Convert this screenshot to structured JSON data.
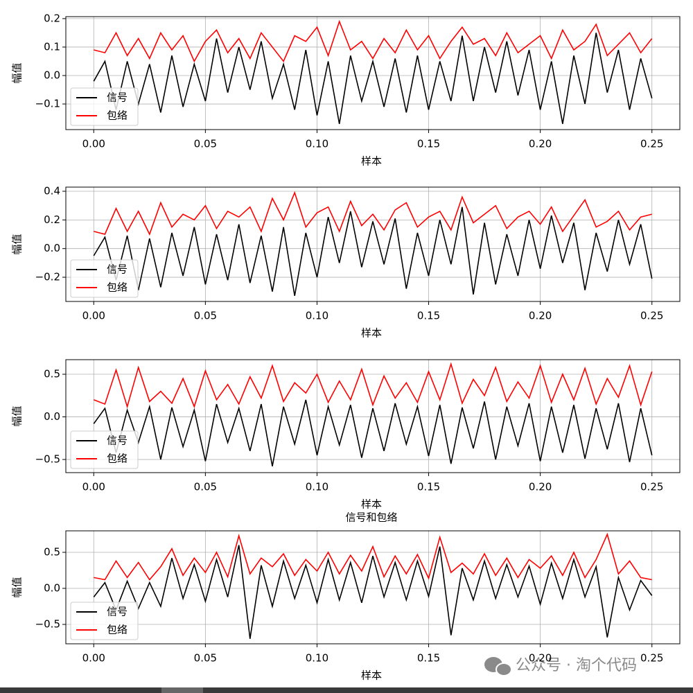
{
  "chart_data": [
    {
      "type": "line",
      "xlabel": "样本",
      "ylabel": "幅值",
      "x": [
        0,
        0.005,
        0.01,
        0.015,
        0.02,
        0.025,
        0.03,
        0.035,
        0.04,
        0.045,
        0.05,
        0.055,
        0.06,
        0.065,
        0.07,
        0.075,
        0.08,
        0.085,
        0.09,
        0.095,
        0.1,
        0.105,
        0.11,
        0.115,
        0.12,
        0.125,
        0.13,
        0.135,
        0.14,
        0.145,
        0.15,
        0.155,
        0.16,
        0.165,
        0.17,
        0.175,
        0.18,
        0.185,
        0.19,
        0.195,
        0.2,
        0.205,
        0.21,
        0.215,
        0.22,
        0.225,
        0.23,
        0.235,
        0.24,
        0.245,
        0.25
      ],
      "series": [
        {
          "name": "信号",
          "color": "#000000",
          "values": [
            -0.02,
            0.05,
            -0.12,
            0.05,
            -0.1,
            0.04,
            -0.13,
            0.07,
            -0.11,
            0.04,
            -0.09,
            0.13,
            -0.06,
            0.1,
            -0.05,
            0.12,
            -0.08,
            0.04,
            -0.12,
            0.09,
            -0.14,
            0.05,
            -0.17,
            0.07,
            -0.09,
            0.05,
            -0.11,
            0.06,
            -0.13,
            0.07,
            -0.12,
            0.05,
            -0.09,
            0.14,
            -0.09,
            0.1,
            -0.06,
            0.12,
            -0.07,
            0.09,
            -0.12,
            0.05,
            -0.17,
            0.07,
            -0.1,
            0.15,
            -0.06,
            0.09,
            -0.12,
            0.06,
            -0.08
          ]
        },
        {
          "name": "包络",
          "color": "#ff0000",
          "values": [
            0.09,
            0.08,
            0.15,
            0.07,
            0.13,
            0.06,
            0.15,
            0.09,
            0.14,
            0.05,
            0.12,
            0.16,
            0.08,
            0.13,
            0.06,
            0.15,
            0.1,
            0.05,
            0.14,
            0.12,
            0.17,
            0.07,
            0.19,
            0.09,
            0.12,
            0.06,
            0.13,
            0.08,
            0.16,
            0.09,
            0.14,
            0.06,
            0.12,
            0.17,
            0.11,
            0.13,
            0.07,
            0.15,
            0.08,
            0.11,
            0.14,
            0.06,
            0.16,
            0.09,
            0.12,
            0.18,
            0.07,
            0.11,
            0.15,
            0.08,
            0.13
          ]
        }
      ],
      "xlim": [
        -0.0125,
        0.2625
      ],
      "ylim": [
        -0.19,
        0.207
      ],
      "xticks": [
        {
          "value": 0,
          "label": "0.00"
        },
        {
          "value": 0.05,
          "label": "0.05"
        },
        {
          "value": 0.1,
          "label": "0.10"
        },
        {
          "value": 0.15,
          "label": "0.15"
        },
        {
          "value": 0.2,
          "label": "0.20"
        },
        {
          "value": 0.25,
          "label": "0.25"
        }
      ],
      "yticks": [
        {
          "value": -0.1,
          "label": "−0.1"
        },
        {
          "value": 0,
          "label": "0.0"
        },
        {
          "value": 0.1,
          "label": "0.1"
        },
        {
          "value": 0.2,
          "label": "0.2"
        }
      ],
      "grid": true,
      "legend": "lower left"
    },
    {
      "type": "line",
      "xlabel": "样本",
      "ylabel": "幅值",
      "x": [
        0,
        0.005,
        0.01,
        0.015,
        0.02,
        0.025,
        0.03,
        0.035,
        0.04,
        0.045,
        0.05,
        0.055,
        0.06,
        0.065,
        0.07,
        0.075,
        0.08,
        0.085,
        0.09,
        0.095,
        0.1,
        0.105,
        0.11,
        0.115,
        0.12,
        0.125,
        0.13,
        0.135,
        0.14,
        0.145,
        0.15,
        0.155,
        0.16,
        0.165,
        0.17,
        0.175,
        0.18,
        0.185,
        0.19,
        0.195,
        0.2,
        0.205,
        0.21,
        0.215,
        0.22,
        0.225,
        0.23,
        0.235,
        0.24,
        0.245,
        0.25
      ],
      "series": [
        {
          "name": "信号",
          "color": "#000000",
          "values": [
            -0.05,
            0.08,
            -0.22,
            0.09,
            -0.29,
            0.07,
            -0.27,
            0.11,
            -0.19,
            0.15,
            -0.25,
            0.1,
            -0.22,
            0.17,
            -0.24,
            0.09,
            -0.3,
            0.15,
            -0.33,
            0.11,
            -0.2,
            0.22,
            -0.1,
            0.26,
            -0.13,
            0.19,
            -0.11,
            0.21,
            -0.28,
            0.11,
            -0.19,
            0.2,
            -0.11,
            0.29,
            -0.32,
            0.18,
            -0.25,
            0.1,
            -0.19,
            0.2,
            -0.14,
            0.23,
            -0.1,
            0.18,
            -0.29,
            0.11,
            -0.16,
            0.2,
            -0.11,
            0.17,
            -0.21
          ]
        },
        {
          "name": "包络",
          "color": "#ff0000",
          "values": [
            0.12,
            0.1,
            0.28,
            0.12,
            0.26,
            0.1,
            0.32,
            0.15,
            0.24,
            0.2,
            0.3,
            0.14,
            0.26,
            0.22,
            0.29,
            0.12,
            0.35,
            0.2,
            0.39,
            0.15,
            0.25,
            0.29,
            0.12,
            0.33,
            0.16,
            0.24,
            0.13,
            0.27,
            0.32,
            0.15,
            0.22,
            0.26,
            0.13,
            0.36,
            0.18,
            0.24,
            0.3,
            0.14,
            0.22,
            0.26,
            0.17,
            0.29,
            0.12,
            0.23,
            0.34,
            0.15,
            0.19,
            0.26,
            0.13,
            0.22,
            0.24
          ]
        }
      ],
      "xlim": [
        -0.0125,
        0.2625
      ],
      "ylim": [
        -0.369,
        0.429
      ],
      "xticks": [
        {
          "value": 0,
          "label": "0.00"
        },
        {
          "value": 0.05,
          "label": "0.05"
        },
        {
          "value": 0.1,
          "label": "0.10"
        },
        {
          "value": 0.15,
          "label": "0.15"
        },
        {
          "value": 0.2,
          "label": "0.20"
        },
        {
          "value": 0.25,
          "label": "0.25"
        }
      ],
      "yticks": [
        {
          "value": -0.2,
          "label": "−0.2"
        },
        {
          "value": 0,
          "label": "0.0"
        },
        {
          "value": 0.2,
          "label": "0.2"
        },
        {
          "value": 0.4,
          "label": "0.4"
        }
      ],
      "grid": true,
      "legend": "lower left"
    },
    {
      "type": "line",
      "xlabel": "样本",
      "ylabel": "幅值",
      "x": [
        0,
        0.005,
        0.01,
        0.015,
        0.02,
        0.025,
        0.03,
        0.035,
        0.04,
        0.045,
        0.05,
        0.055,
        0.06,
        0.065,
        0.07,
        0.075,
        0.08,
        0.085,
        0.09,
        0.095,
        0.1,
        0.105,
        0.11,
        0.115,
        0.12,
        0.125,
        0.13,
        0.135,
        0.14,
        0.145,
        0.15,
        0.155,
        0.16,
        0.165,
        0.17,
        0.175,
        0.18,
        0.185,
        0.19,
        0.195,
        0.2,
        0.205,
        0.21,
        0.215,
        0.22,
        0.225,
        0.23,
        0.235,
        0.24,
        0.245,
        0.25
      ],
      "series": [
        {
          "name": "信号",
          "color": "#000000",
          "values": [
            -0.08,
            0.1,
            -0.42,
            0.08,
            -0.3,
            0.12,
            -0.5,
            0.11,
            -0.35,
            0.08,
            -0.52,
            0.15,
            -0.3,
            0.1,
            -0.4,
            0.15,
            -0.58,
            0.12,
            -0.32,
            0.2,
            -0.45,
            0.12,
            -0.33,
            0.14,
            -0.48,
            0.1,
            -0.4,
            0.16,
            -0.32,
            0.12,
            -0.46,
            0.14,
            -0.55,
            0.11,
            -0.37,
            0.18,
            -0.5,
            0.12,
            -0.34,
            0.16,
            -0.52,
            0.12,
            -0.42,
            0.14,
            -0.49,
            0.1,
            -0.38,
            0.16,
            -0.53,
            0.1,
            -0.45
          ]
        },
        {
          "name": "包络",
          "color": "#ff0000",
          "values": [
            0.2,
            0.15,
            0.55,
            0.12,
            0.58,
            0.18,
            0.3,
            0.16,
            0.45,
            0.12,
            0.54,
            0.2,
            0.38,
            0.15,
            0.47,
            0.22,
            0.6,
            0.18,
            0.4,
            0.28,
            0.5,
            0.17,
            0.42,
            0.2,
            0.56,
            0.14,
            0.48,
            0.22,
            0.4,
            0.17,
            0.53,
            0.2,
            0.62,
            0.16,
            0.44,
            0.25,
            0.58,
            0.18,
            0.41,
            0.22,
            0.6,
            0.17,
            0.5,
            0.2,
            0.57,
            0.15,
            0.45,
            0.23,
            0.6,
            0.14,
            0.53
          ]
        }
      ],
      "xlim": [
        -0.0125,
        0.2625
      ],
      "ylim": [
        -0.654,
        0.671
      ],
      "xticks": [
        {
          "value": 0,
          "label": "0.00"
        },
        {
          "value": 0.05,
          "label": "0.05"
        },
        {
          "value": 0.1,
          "label": "0.10"
        },
        {
          "value": 0.15,
          "label": "0.15"
        },
        {
          "value": 0.2,
          "label": "0.20"
        },
        {
          "value": 0.25,
          "label": "0.25"
        }
      ],
      "yticks": [
        {
          "value": -0.5,
          "label": "−0.5"
        },
        {
          "value": 0,
          "label": "0.0"
        },
        {
          "value": 0.5,
          "label": "0.5"
        }
      ],
      "grid": true,
      "legend": "lower left"
    },
    {
      "type": "line",
      "title": "信号和包络",
      "xlabel": "样本",
      "ylabel": "幅值",
      "x": [
        0,
        0.005,
        0.01,
        0.015,
        0.02,
        0.025,
        0.03,
        0.035,
        0.04,
        0.045,
        0.05,
        0.055,
        0.06,
        0.065,
        0.07,
        0.075,
        0.08,
        0.085,
        0.09,
        0.095,
        0.1,
        0.105,
        0.11,
        0.115,
        0.12,
        0.125,
        0.13,
        0.135,
        0.14,
        0.145,
        0.15,
        0.155,
        0.16,
        0.165,
        0.17,
        0.175,
        0.18,
        0.185,
        0.19,
        0.195,
        0.2,
        0.205,
        0.21,
        0.215,
        0.22,
        0.225,
        0.23,
        0.235,
        0.24,
        0.245,
        0.25
      ],
      "series": [
        {
          "name": "信号",
          "color": "#000000",
          "values": [
            -0.12,
            0.08,
            -0.3,
            0.1,
            -0.28,
            0.08,
            -0.25,
            0.42,
            -0.14,
            0.33,
            -0.18,
            0.4,
            -0.12,
            0.6,
            -0.7,
            0.32,
            -0.25,
            0.38,
            -0.14,
            0.32,
            -0.2,
            0.4,
            -0.16,
            0.36,
            -0.2,
            0.45,
            -0.12,
            0.36,
            -0.16,
            0.38,
            -0.11,
            0.58,
            -0.65,
            0.28,
            -0.16,
            0.38,
            -0.14,
            0.33,
            -0.12,
            0.31,
            -0.22,
            0.35,
            -0.14,
            0.4,
            -0.12,
            0.3,
            -0.68,
            0.15,
            -0.3,
            0.11,
            -0.1
          ]
        },
        {
          "name": "包络",
          "color": "#ff0000",
          "values": [
            0.15,
            0.12,
            0.38,
            0.15,
            0.36,
            0.12,
            0.3,
            0.55,
            0.18,
            0.42,
            0.22,
            0.5,
            0.16,
            0.73,
            0.2,
            0.42,
            0.3,
            0.48,
            0.18,
            0.4,
            0.24,
            0.5,
            0.2,
            0.46,
            0.24,
            0.58,
            0.16,
            0.45,
            0.2,
            0.47,
            0.14,
            0.71,
            0.22,
            0.35,
            0.2,
            0.48,
            0.18,
            0.42,
            0.15,
            0.4,
            0.28,
            0.45,
            0.18,
            0.5,
            0.15,
            0.4,
            0.75,
            0.2,
            0.38,
            0.15,
            0.12
          ]
        }
      ],
      "xlim": [
        -0.0125,
        0.2625
      ],
      "ylim": [
        -0.769,
        0.798
      ],
      "xticks": [
        {
          "value": 0,
          "label": "0.00"
        },
        {
          "value": 0.05,
          "label": "0.05"
        },
        {
          "value": 0.1,
          "label": "0.10"
        },
        {
          "value": 0.15,
          "label": "0.15"
        },
        {
          "value": 0.2,
          "label": "0.20"
        },
        {
          "value": 0.25,
          "label": "0.25"
        }
      ],
      "yticks": [
        {
          "value": -0.5,
          "label": "−0.5"
        },
        {
          "value": 0,
          "label": "0.0"
        },
        {
          "value": 0.5,
          "label": "0.5"
        }
      ],
      "grid": true,
      "legend": "lower left"
    }
  ],
  "watermark": "公众号 · 淘个代码"
}
